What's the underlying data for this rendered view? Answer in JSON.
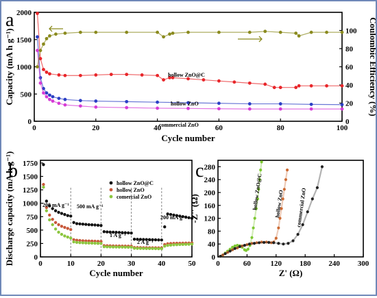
{
  "figure": {
    "panels": [
      "a",
      "b",
      "c"
    ]
  },
  "chart_data": [
    {
      "panel": "a",
      "type": "scatter",
      "xlabel": "Cycle number",
      "ylabel": "Capacity (mA h g⁻¹)",
      "ylabel_right": "Coulombic Efficiency (%)",
      "xlim": [
        0,
        100
      ],
      "ylim": [
        0,
        2000
      ],
      "ylim_right": [
        0,
        120
      ],
      "xticks": [
        0,
        20,
        40,
        60,
        80,
        100
      ],
      "yticks": [
        0,
        500,
        1000,
        1500,
        2000
      ],
      "yticks_right": [
        0,
        20,
        40,
        60,
        80,
        100
      ],
      "annotations": [
        "hollow ZnO@C",
        "hollow ZnO",
        "commercial ZnO"
      ],
      "series": [
        {
          "name": "hollow ZnO@C",
          "color": "#e8262a",
          "x": [
            1,
            2,
            3,
            4,
            5,
            8,
            10,
            15,
            20,
            25,
            30,
            35,
            40,
            42,
            44,
            45,
            50,
            55,
            60,
            65,
            70,
            75,
            78,
            80,
            85,
            86,
            90,
            95,
            100
          ],
          "y": [
            1980,
            1150,
            950,
            900,
            870,
            850,
            840,
            840,
            850,
            860,
            860,
            850,
            840,
            760,
            800,
            800,
            780,
            760,
            740,
            720,
            700,
            680,
            620,
            620,
            620,
            650,
            650,
            650,
            650
          ]
        },
        {
          "name": "hollow ZnO",
          "color": "#2b3fc4",
          "x": [
            1,
            2,
            3,
            4,
            5,
            6,
            8,
            10,
            15,
            20,
            30,
            40,
            50,
            60,
            70,
            80,
            90,
            100
          ],
          "y": [
            1550,
            800,
            600,
            520,
            480,
            450,
            420,
            400,
            380,
            370,
            360,
            350,
            340,
            330,
            320,
            320,
            310,
            305
          ]
        },
        {
          "name": "commercial ZnO",
          "color": "#d63cd6",
          "x": [
            1,
            2,
            3,
            4,
            5,
            6,
            8,
            10,
            15,
            20,
            30,
            40,
            50,
            60,
            70,
            80,
            90,
            100
          ],
          "y": [
            1300,
            700,
            520,
            450,
            400,
            370,
            330,
            300,
            280,
            260,
            250,
            240,
            235,
            230,
            225,
            225,
            225,
            225
          ]
        },
        {
          "name": "hollow ZnO@C",
          "color": "#8a8a1e",
          "axis": "right",
          "x": [
            1,
            2,
            3,
            4,
            5,
            7,
            10,
            15,
            20,
            30,
            40,
            42,
            44,
            45,
            50,
            60,
            70,
            75,
            80,
            85,
            86,
            90,
            95,
            100
          ],
          "y": [
            60,
            78,
            85,
            91,
            94,
            96,
            97,
            98,
            98,
            98,
            98,
            93,
            96,
            97,
            98,
            98,
            98,
            99,
            98,
            97,
            94,
            98,
            98,
            98
          ]
        }
      ]
    },
    {
      "panel": "b",
      "type": "scatter",
      "xlabel": "Cycle number",
      "ylabel": "Discharge capacity (mA h g⁻¹)",
      "xlim": [
        0,
        50
      ],
      "ylim": [
        0,
        1800
      ],
      "xticks": [
        0,
        10,
        20,
        30,
        40,
        50
      ],
      "yticks": [
        0,
        250,
        500,
        750,
        1000,
        1250,
        1500,
        1750
      ],
      "annotations": [
        "200 mA g⁻¹",
        "500 mA g⁻¹",
        "1 A g⁻¹",
        "2 A g⁻¹",
        "200 mA g⁻¹"
      ],
      "legend": [
        "hollow ZnO@C",
        "hollow ZnO",
        "comercial ZnO"
      ],
      "series": [
        {
          "name": "hollow ZnO@C",
          "color": "#111111",
          "x": [
            1,
            2,
            3,
            4,
            5,
            6,
            7,
            8,
            9,
            10,
            11,
            12,
            13,
            14,
            15,
            16,
            17,
            18,
            19,
            20,
            21,
            22,
            23,
            24,
            25,
            26,
            27,
            28,
            29,
            30,
            31,
            32,
            33,
            34,
            35,
            36,
            37,
            38,
            39,
            40,
            41,
            42,
            43,
            44,
            45,
            46,
            47,
            48,
            49,
            50
          ],
          "y": [
            1720,
            1040,
            950,
            900,
            860,
            830,
            810,
            790,
            770,
            760,
            640,
            620,
            615,
            610,
            605,
            600,
            598,
            595,
            590,
            585,
            470,
            465,
            462,
            460,
            458,
            455,
            452,
            450,
            448,
            445,
            330,
            328,
            326,
            325,
            323,
            322,
            320,
            318,
            316,
            315,
            560,
            800,
            790,
            780,
            770,
            760,
            750,
            740,
            730,
            720
          ]
        },
        {
          "name": "hollow ZnO",
          "color": "#c8583a",
          "x": [
            1,
            2,
            3,
            4,
            5,
            6,
            7,
            8,
            9,
            10,
            11,
            12,
            13,
            14,
            15,
            16,
            17,
            18,
            19,
            20,
            21,
            22,
            23,
            24,
            25,
            26,
            27,
            28,
            29,
            30,
            31,
            32,
            33,
            34,
            35,
            36,
            37,
            38,
            39,
            40,
            41,
            42,
            43,
            44,
            45,
            46,
            47,
            48,
            49,
            50
          ],
          "y": [
            1350,
            920,
            780,
            700,
            640,
            600,
            570,
            550,
            530,
            510,
            320,
            310,
            305,
            300,
            298,
            296,
            294,
            292,
            290,
            288,
            210,
            208,
            206,
            205,
            204,
            203,
            202,
            201,
            200,
            200,
            175,
            174,
            173,
            172,
            171,
            170,
            170,
            169,
            168,
            168,
            230,
            245,
            250,
            252,
            254,
            255,
            256,
            257,
            258,
            260
          ]
        },
        {
          "name": "comercial ZnO",
          "color": "#8cc63f",
          "x": [
            1,
            2,
            3,
            4,
            5,
            6,
            7,
            8,
            9,
            10,
            11,
            12,
            13,
            14,
            15,
            16,
            17,
            18,
            19,
            20,
            21,
            22,
            23,
            24,
            25,
            26,
            27,
            28,
            29,
            30,
            31,
            32,
            33,
            34,
            35,
            36,
            37,
            38,
            39,
            40,
            41,
            42,
            43,
            44,
            45,
            46,
            47,
            48,
            49,
            50
          ],
          "y": [
            1300,
            860,
            690,
            600,
            520,
            460,
            420,
            390,
            370,
            350,
            280,
            270,
            265,
            262,
            260,
            258,
            256,
            254,
            252,
            250,
            190,
            188,
            186,
            185,
            184,
            183,
            182,
            181,
            180,
            180,
            160,
            159,
            158,
            157,
            156,
            155,
            155,
            154,
            153,
            152,
            200,
            215,
            220,
            225,
            228,
            230,
            232,
            234,
            236,
            238
          ]
        }
      ]
    },
    {
      "panel": "c",
      "type": "scatter",
      "xlabel": "Z' (Ω)",
      "ylabel": "-Z'' (Ω)",
      "xlim": [
        0,
        300
      ],
      "ylim": [
        0,
        300
      ],
      "xticks": [
        0,
        60,
        120,
        180,
        240,
        300
      ],
      "yticks": [
        0,
        40,
        80,
        120,
        160,
        200,
        240,
        280
      ],
      "annotations": [
        "hollow ZnO@C",
        "hollow ZnO",
        "commercial ZnO"
      ],
      "series": [
        {
          "name": "hollow ZnO@C",
          "color": "#7dc832",
          "x": [
            5,
            10,
            15,
            20,
            25,
            30,
            35,
            40,
            45,
            50,
            55,
            58,
            62,
            66,
            70,
            73,
            76,
            79,
            82,
            84,
            86,
            88,
            90
          ],
          "y": [
            2,
            6,
            12,
            18,
            24,
            30,
            34,
            36,
            35,
            30,
            22,
            20,
            24,
            36,
            60,
            90,
            120,
            150,
            180,
            210,
            240,
            270,
            295
          ]
        },
        {
          "name": "hollow ZnO",
          "color": "#cc6a33",
          "x": [
            5,
            10,
            20,
            30,
            40,
            50,
            60,
            70,
            80,
            90,
            100,
            110,
            115,
            120,
            125,
            128,
            131,
            134,
            137,
            140,
            143
          ],
          "y": [
            2,
            6,
            14,
            22,
            28,
            34,
            38,
            42,
            44,
            46,
            46,
            44,
            46,
            58,
            90,
            120,
            150,
            180,
            210,
            240,
            270
          ]
        },
        {
          "name": "commercial ZnO",
          "color": "#222222",
          "x": [
            5,
            15,
            25,
            35,
            45,
            55,
            65,
            75,
            85,
            95,
            105,
            115,
            125,
            135,
            145,
            155,
            165,
            175,
            185,
            195,
            205,
            215
          ],
          "y": [
            2,
            10,
            18,
            26,
            32,
            36,
            40,
            42,
            44,
            45,
            45,
            44,
            42,
            40,
            42,
            50,
            70,
            100,
            140,
            180,
            215,
            280
          ]
        }
      ]
    }
  ]
}
